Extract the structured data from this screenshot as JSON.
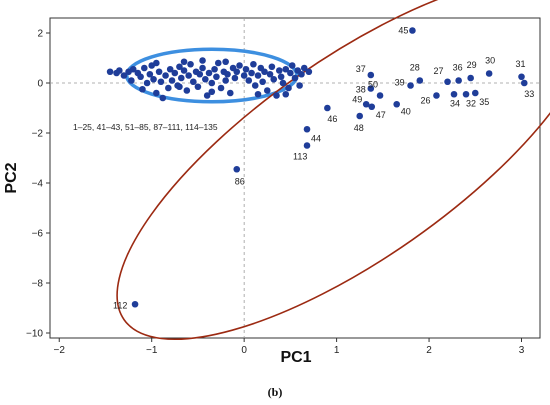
{
  "chart_data": {
    "type": "scatter",
    "xlabel": "PC1",
    "ylabel": "PC2",
    "xlim": [
      -2.1,
      3.2
    ],
    "ylim": [
      -10.2,
      2.6
    ],
    "xticks": [
      -2,
      -1,
      0,
      1,
      2,
      3
    ],
    "yticks": [
      2,
      0,
      -2,
      -4,
      -6,
      -8,
      -10
    ],
    "reference_lines": {
      "x": 0,
      "y": 0
    },
    "grid": false,
    "point_color": "#1f3d99",
    "cluster_color": "#3d8fe0",
    "ellipse_color": "#9c2a12",
    "caption": "(b)",
    "cluster_label": "1–25, 41–43, 51–85, 87–111, 114–135",
    "labeled_points": [
      {
        "label": "45",
        "x": 1.82,
        "y": 2.1
      },
      {
        "label": "37",
        "x": 1.37,
        "y": 0.32
      },
      {
        "label": "38",
        "x": 1.37,
        "y": -0.22
      },
      {
        "label": "28",
        "x": 1.9,
        "y": 0.1
      },
      {
        "label": "27",
        "x": 2.2,
        "y": 0.05
      },
      {
        "label": "36",
        "x": 2.32,
        "y": 0.1
      },
      {
        "label": "29",
        "x": 2.45,
        "y": 0.2
      },
      {
        "label": "30",
        "x": 2.65,
        "y": 0.38
      },
      {
        "label": "31",
        "x": 3.0,
        "y": 0.25
      },
      {
        "label": "33",
        "x": 3.03,
        "y": 0.0
      },
      {
        "label": "50",
        "x": 1.47,
        "y": -0.5
      },
      {
        "label": "39",
        "x": 1.8,
        "y": -0.1
      },
      {
        "label": "26",
        "x": 2.08,
        "y": -0.5
      },
      {
        "label": "34",
        "x": 2.27,
        "y": -0.45
      },
      {
        "label": "32",
        "x": 2.4,
        "y": -0.45
      },
      {
        "label": "35",
        "x": 2.5,
        "y": -0.4
      },
      {
        "label": "49",
        "x": 1.32,
        "y": -0.85
      },
      {
        "label": "40",
        "x": 1.65,
        "y": -0.85
      },
      {
        "label": "47",
        "x": 1.38,
        "y": -0.95
      },
      {
        "label": "46",
        "x": 0.9,
        "y": -1.0
      },
      {
        "label": "48",
        "x": 1.25,
        "y": -1.32
      },
      {
        "label": "44",
        "x": 0.68,
        "y": -1.85
      },
      {
        "label": "113",
        "x": 0.68,
        "y": -2.5
      },
      {
        "label": "86",
        "x": -0.08,
        "y": -3.45
      },
      {
        "label": "112",
        "x": -1.18,
        "y": -8.85
      }
    ],
    "cluster_points": [
      {
        "x": -1.45,
        "y": 0.45
      },
      {
        "x": -1.38,
        "y": 0.4
      },
      {
        "x": -1.35,
        "y": 0.5
      },
      {
        "x": -1.3,
        "y": 0.3
      },
      {
        "x": -1.25,
        "y": 0.45
      },
      {
        "x": -1.22,
        "y": 0.1
      },
      {
        "x": -1.2,
        "y": 0.55
      },
      {
        "x": -1.15,
        "y": 0.4
      },
      {
        "x": -1.12,
        "y": 0.25
      },
      {
        "x": -1.08,
        "y": 0.6
      },
      {
        "x": -1.05,
        "y": 0.0
      },
      {
        "x": -1.02,
        "y": 0.35
      },
      {
        "x": -1.0,
        "y": 0.7
      },
      {
        "x": -0.98,
        "y": 0.15
      },
      {
        "x": -0.95,
        "y": -0.4
      },
      {
        "x": -0.92,
        "y": 0.45
      },
      {
        "x": -0.9,
        "y": 0.05
      },
      {
        "x": -0.88,
        "y": -0.6
      },
      {
        "x": -0.85,
        "y": 0.3
      },
      {
        "x": -0.82,
        "y": -0.2
      },
      {
        "x": -0.8,
        "y": 0.55
      },
      {
        "x": -0.78,
        "y": 0.1
      },
      {
        "x": -0.75,
        "y": 0.4
      },
      {
        "x": -0.72,
        "y": -0.1
      },
      {
        "x": -0.7,
        "y": 0.65
      },
      {
        "x": -0.68,
        "y": 0.2
      },
      {
        "x": -0.65,
        "y": 0.5
      },
      {
        "x": -0.62,
        "y": -0.3
      },
      {
        "x": -0.6,
        "y": 0.3
      },
      {
        "x": -0.58,
        "y": 0.75
      },
      {
        "x": -0.55,
        "y": 0.05
      },
      {
        "x": -0.52,
        "y": 0.45
      },
      {
        "x": -0.5,
        "y": -0.15
      },
      {
        "x": -0.48,
        "y": 0.35
      },
      {
        "x": -0.45,
        "y": 0.6
      },
      {
        "x": -0.42,
        "y": 0.15
      },
      {
        "x": -0.4,
        "y": -0.5
      },
      {
        "x": -0.38,
        "y": 0.4
      },
      {
        "x": -0.35,
        "y": 0.0
      },
      {
        "x": -0.32,
        "y": 0.55
      },
      {
        "x": -0.3,
        "y": 0.25
      },
      {
        "x": -0.28,
        "y": 0.8
      },
      {
        "x": -0.25,
        "y": -0.2
      },
      {
        "x": -0.22,
        "y": 0.45
      },
      {
        "x": -0.2,
        "y": 0.1
      },
      {
        "x": -0.18,
        "y": 0.35
      },
      {
        "x": -0.15,
        "y": -0.4
      },
      {
        "x": -0.12,
        "y": 0.6
      },
      {
        "x": -0.1,
        "y": 0.2
      },
      {
        "x": -0.08,
        "y": 0.45
      },
      {
        "x": -0.05,
        "y": 0.7
      },
      {
        "x": 0.0,
        "y": 0.3
      },
      {
        "x": 0.02,
        "y": 0.55
      },
      {
        "x": 0.05,
        "y": 0.1
      },
      {
        "x": 0.08,
        "y": 0.4
      },
      {
        "x": 0.1,
        "y": 0.75
      },
      {
        "x": 0.12,
        "y": -0.1
      },
      {
        "x": 0.15,
        "y": 0.3
      },
      {
        "x": 0.18,
        "y": 0.6
      },
      {
        "x": 0.2,
        "y": 0.05
      },
      {
        "x": 0.22,
        "y": 0.45
      },
      {
        "x": 0.25,
        "y": -0.3
      },
      {
        "x": 0.28,
        "y": 0.35
      },
      {
        "x": 0.3,
        "y": 0.65
      },
      {
        "x": 0.32,
        "y": 0.15
      },
      {
        "x": 0.35,
        "y": -0.5
      },
      {
        "x": 0.38,
        "y": 0.5
      },
      {
        "x": 0.4,
        "y": 0.25
      },
      {
        "x": 0.42,
        "y": 0.0
      },
      {
        "x": 0.45,
        "y": 0.55
      },
      {
        "x": 0.48,
        "y": -0.2
      },
      {
        "x": 0.5,
        "y": 0.4
      },
      {
        "x": 0.52,
        "y": 0.7
      },
      {
        "x": 0.55,
        "y": 0.2
      },
      {
        "x": 0.58,
        "y": 0.5
      },
      {
        "x": 0.6,
        "y": -0.1
      },
      {
        "x": 0.62,
        "y": 0.35
      },
      {
        "x": 0.65,
        "y": 0.6
      },
      {
        "x": 0.7,
        "y": 0.45
      },
      {
        "x": -0.65,
        "y": 0.85
      },
      {
        "x": -0.45,
        "y": 0.9
      },
      {
        "x": -0.2,
        "y": 0.85
      },
      {
        "x": -0.95,
        "y": 0.8
      },
      {
        "x": -0.7,
        "y": -0.15
      },
      {
        "x": 0.15,
        "y": -0.45
      },
      {
        "x": 0.45,
        "y": -0.45
      },
      {
        "x": -0.35,
        "y": -0.35
      },
      {
        "x": -1.1,
        "y": -0.25
      }
    ],
    "ellipses": [
      {
        "name": "cluster-ellipse",
        "cx": -0.35,
        "cy": 0.3,
        "rx": 0.92,
        "ry": 1.05,
        "rotation_deg": 0
      },
      {
        "name": "group-ellipse",
        "cx": 1.2,
        "cy": -3.0,
        "rx": 3.05,
        "ry": 1.08,
        "rotation_deg": -35
      }
    ]
  }
}
